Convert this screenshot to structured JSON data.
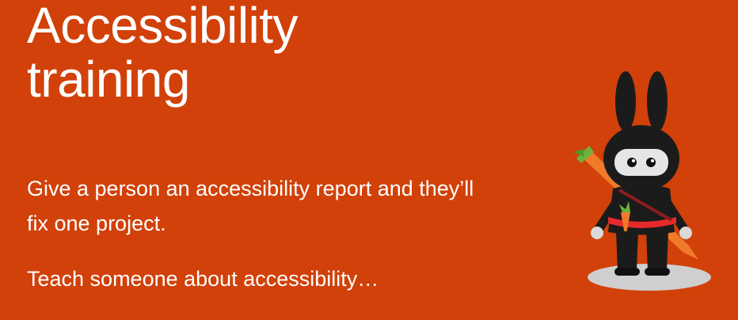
{
  "hero": {
    "title_line_1": "Accessibility",
    "title_line_2": "training",
    "paragraph_1_line_1": "Give a person an accessibility report and they’ll",
    "paragraph_1_line_2": "fix one project.",
    "paragraph_2": "Teach someone about accessibility…"
  },
  "colors": {
    "background": "#d14109",
    "text": "#ffffff",
    "mascot_body": "#1b1b1b",
    "mascot_sash": "#e8292b",
    "carrot": "#f07a2a",
    "carrot_leaf": "#6bb33e"
  },
  "mascot": {
    "icon": "ninja-bunny-mascot-icon"
  }
}
